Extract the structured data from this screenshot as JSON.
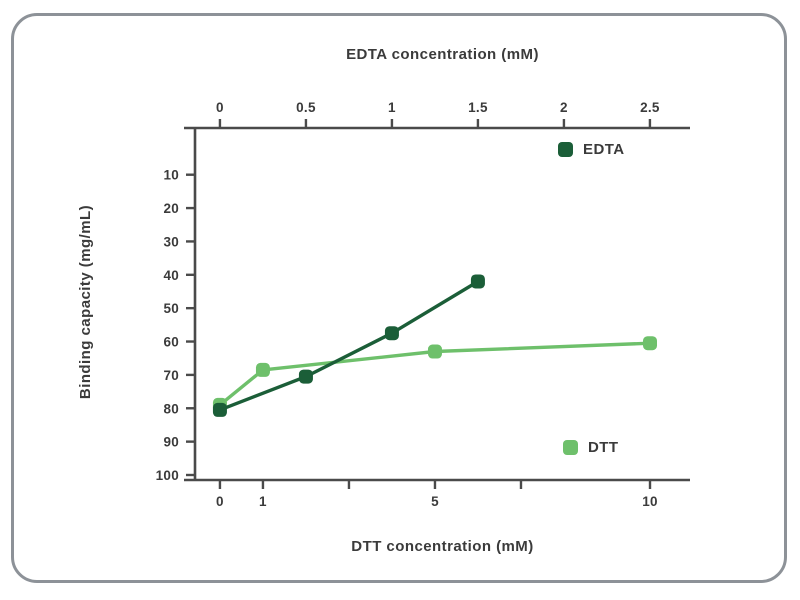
{
  "chart_data": {
    "type": "line",
    "title": "",
    "grid": false,
    "axes": {
      "top": {
        "label": "EDTA concentration (mM)",
        "ticks": [
          0,
          0.5,
          1,
          1.5,
          2,
          2.5
        ],
        "range": [
          -0.145,
          2.733
        ]
      },
      "bottom": {
        "label": "DTT concentration (mM)",
        "ticks": [
          0,
          1,
          5,
          10
        ],
        "minor_ticks": [
          3,
          7
        ],
        "range": [
          -0.58,
          10.93
        ]
      },
      "left": {
        "label": "Binding capacity (mg/mL)",
        "ticks": [
          100,
          90,
          80,
          70,
          60,
          50,
          40,
          30,
          20,
          10
        ],
        "range": [
          101.5,
          -4
        ]
      }
    },
    "series": [
      {
        "name": "EDTA",
        "x_axis": "top",
        "color": "#1b5e38",
        "points": [
          [
            0,
            80.5
          ],
          [
            0.5,
            70.5
          ],
          [
            1,
            57.5
          ],
          [
            1.5,
            42
          ]
        ]
      },
      {
        "name": "DTT",
        "x_axis": "bottom",
        "color": "#6ec06b",
        "points": [
          [
            0,
            79
          ],
          [
            1,
            68.5
          ],
          [
            5,
            63
          ],
          [
            10,
            60.5
          ]
        ]
      }
    ],
    "legend": {
      "entries": [
        "EDTA",
        "DTT"
      ],
      "positions": [
        "top-right",
        "bottom-right"
      ]
    }
  },
  "styles": {
    "axis_color": "#4a4a4a",
    "text_color": "#3b3b3b",
    "frame_border_color": "#8d9298",
    "background": "#ffffff"
  }
}
